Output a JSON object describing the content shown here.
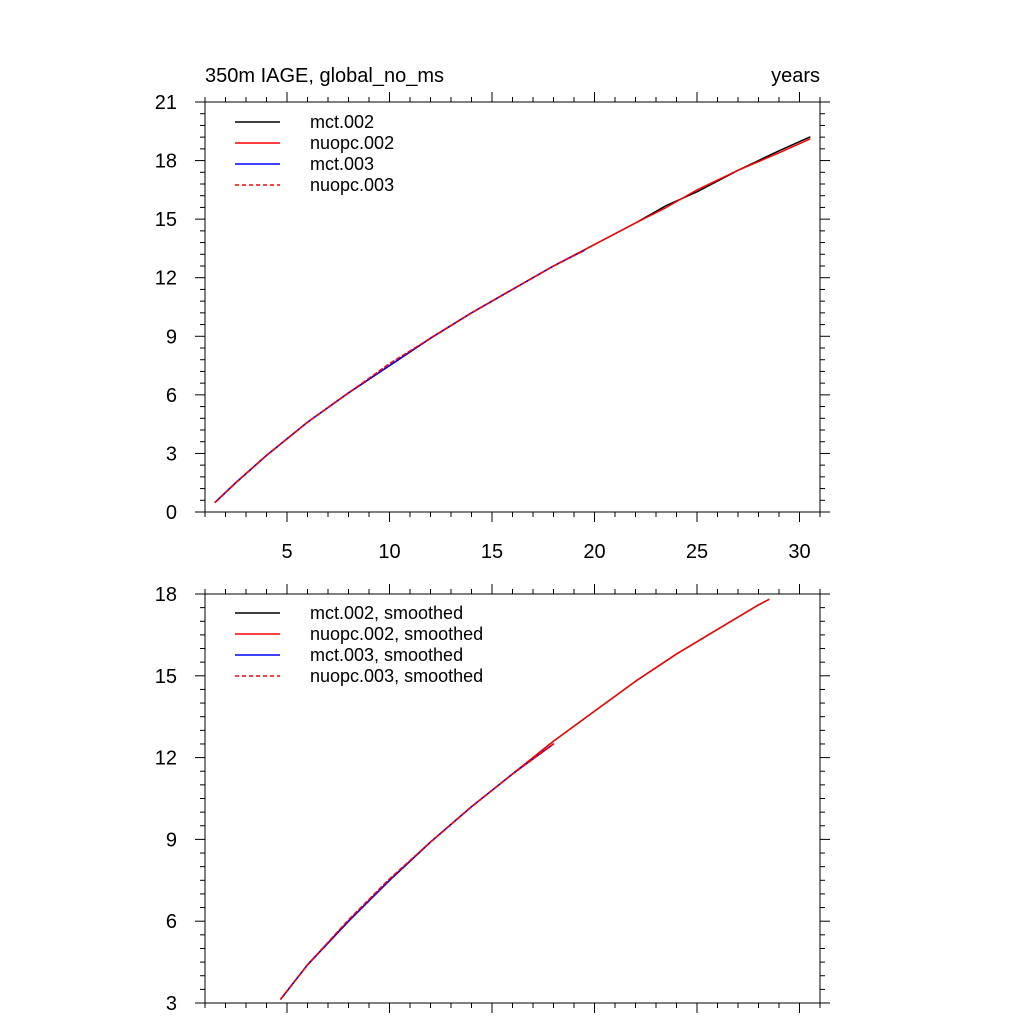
{
  "chart_data": [
    {
      "type": "line",
      "title_left": "350m IAGE, global_no_ms",
      "title_right": "years",
      "xlim": [
        1,
        31
      ],
      "ylim": [
        0,
        21
      ],
      "x_ticks": [
        5,
        10,
        15,
        20,
        25,
        30
      ],
      "x_tick_labels": [
        "5",
        "10",
        "15",
        "20",
        "25",
        "30"
      ],
      "y_ticks": [
        0,
        3,
        6,
        9,
        12,
        15,
        18,
        21
      ],
      "y_tick_labels": [
        "0",
        "3",
        "6",
        "9",
        "12",
        "15",
        "18",
        "21"
      ],
      "legend_position": "top-left",
      "series": [
        {
          "name": "mct.002",
          "color": "#000000",
          "dash": "solid",
          "x": [
            1.5,
            2.5,
            4,
            6,
            8,
            10,
            12,
            14,
            16,
            18,
            20,
            22,
            23.5,
            25,
            27,
            29,
            30.5
          ],
          "y": [
            0.5,
            1.5,
            2.9,
            4.6,
            6.1,
            7.5,
            8.9,
            10.2,
            11.4,
            12.6,
            13.7,
            14.8,
            15.7,
            16.4,
            17.5,
            18.5,
            19.2
          ]
        },
        {
          "name": "nuopc.002",
          "color": "#ff0000",
          "dash": "solid",
          "x": [
            1.5,
            2.5,
            4,
            6,
            8,
            10,
            12,
            14,
            16,
            18,
            20,
            22,
            23.5,
            25,
            27,
            29,
            30.5
          ],
          "y": [
            0.5,
            1.5,
            2.9,
            4.6,
            6.1,
            7.5,
            8.9,
            10.2,
            11.4,
            12.6,
            13.7,
            14.8,
            15.6,
            16.5,
            17.5,
            18.4,
            19.1
          ]
        },
        {
          "name": "mct.003",
          "color": "#0000ff",
          "dash": "solid",
          "x": [
            1.5,
            2.5,
            4,
            6,
            8,
            10,
            12,
            14,
            16,
            18,
            19.5
          ],
          "y": [
            0.5,
            1.5,
            2.9,
            4.6,
            6.1,
            7.5,
            8.9,
            10.2,
            11.4,
            12.6,
            13.4
          ]
        },
        {
          "name": "nuopc.003",
          "color": "#ff0000",
          "dash": "dashed",
          "x": [
            1.5,
            2.5,
            4,
            6,
            8,
            10,
            12,
            14,
            16,
            18,
            19.5
          ],
          "y": [
            0.5,
            1.5,
            2.9,
            4.6,
            6.1,
            7.6,
            8.9,
            10.2,
            11.4,
            12.6,
            13.4
          ]
        }
      ]
    },
    {
      "type": "line",
      "xlim": [
        1,
        31
      ],
      "ylim": [
        3,
        18
      ],
      "x_ticks": [
        5,
        10,
        15,
        20,
        25,
        30
      ],
      "x_tick_labels": [],
      "y_ticks": [
        3,
        6,
        9,
        12,
        15,
        18
      ],
      "y_tick_labels": [
        "3",
        "6",
        "9",
        "12",
        "15",
        "18"
      ],
      "legend_position": "top-left",
      "series": [
        {
          "name": "mct.002, smoothed",
          "color": "#000000",
          "dash": "solid",
          "x": [
            4.7,
            6,
            8,
            10,
            12,
            14,
            16,
            18,
            20,
            22,
            24,
            26,
            28,
            28.5
          ],
          "y": [
            3.15,
            4.4,
            6.0,
            7.5,
            8.9,
            10.2,
            11.4,
            12.6,
            13.7,
            14.8,
            15.8,
            16.7,
            17.6,
            17.8
          ]
        },
        {
          "name": "nuopc.002, smoothed",
          "color": "#ff0000",
          "dash": "solid",
          "x": [
            4.7,
            6,
            8,
            10,
            12,
            14,
            16,
            18,
            20,
            22,
            24,
            26,
            28,
            28.5
          ],
          "y": [
            3.15,
            4.4,
            6.0,
            7.5,
            8.9,
            10.2,
            11.4,
            12.6,
            13.7,
            14.8,
            15.8,
            16.7,
            17.6,
            17.8
          ]
        },
        {
          "name": "mct.003, smoothed",
          "color": "#0000ff",
          "dash": "solid",
          "x": [
            4.7,
            6,
            8,
            10,
            12,
            14,
            16,
            18
          ],
          "y": [
            3.15,
            4.4,
            6.0,
            7.5,
            8.9,
            10.2,
            11.4,
            12.5
          ]
        },
        {
          "name": "nuopc.003, smoothed",
          "color": "#ff0000",
          "dash": "dashed",
          "x": [
            4.7,
            6,
            8,
            10,
            12,
            14,
            16,
            18
          ],
          "y": [
            3.15,
            4.4,
            6.05,
            7.55,
            8.9,
            10.2,
            11.4,
            12.5
          ]
        }
      ]
    }
  ]
}
